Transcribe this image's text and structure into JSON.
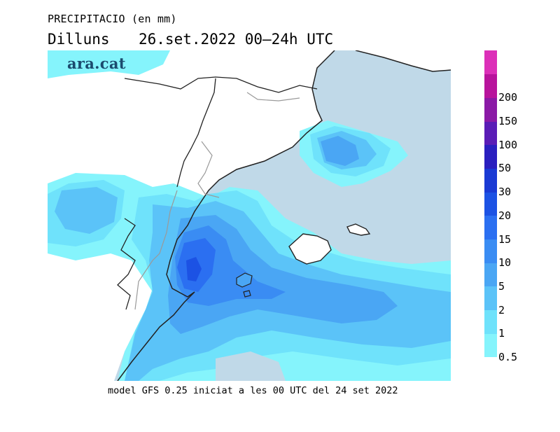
{
  "header": {
    "title": "PRECIPITACIO (en mm)",
    "day": "Dilluns",
    "date_range": "26.set.2022 00–24h UTC"
  },
  "logo": {
    "text": "ara.cat"
  },
  "footer": {
    "text": "model GFS 0.25 iniciat a les 00 UTC del 24 set 2022"
  },
  "legend": {
    "unit": "mm",
    "bins": [
      {
        "label": "0.5",
        "color": "#85f4fc"
      },
      {
        "label": "1",
        "color": "#6fe2fb"
      },
      {
        "label": "2",
        "color": "#5bc3f8"
      },
      {
        "label": "5",
        "color": "#4aa6f4"
      },
      {
        "label": "10",
        "color": "#3a8cf3"
      },
      {
        "label": "15",
        "color": "#2b6ff1"
      },
      {
        "label": "20",
        "color": "#1c52e4"
      },
      {
        "label": "30",
        "color": "#1a3ad4"
      },
      {
        "label": "50",
        "color": "#2a1fbf"
      },
      {
        "label": "100",
        "color": "#5a1cb6"
      },
      {
        "label": "150",
        "color": "#8b19a6"
      },
      {
        "label": "200",
        "color": "#b8139c"
      },
      {
        "label": "",
        "color": "#dc2fb8"
      }
    ]
  },
  "colors": {
    "sea_dry": "#c0d9e8",
    "land_dry": "#ffffff",
    "coastline": "#222222",
    "borders": "#9a9a9a"
  }
}
